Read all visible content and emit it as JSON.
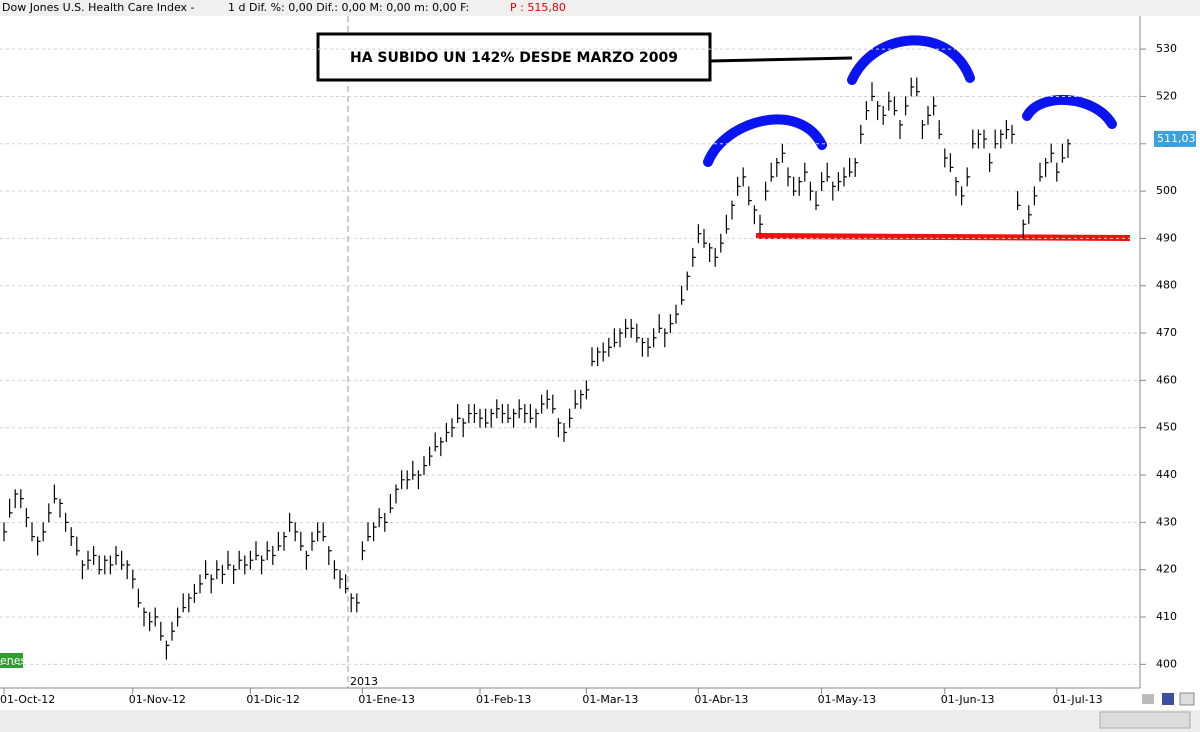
{
  "chart_data": {
    "type": "ohlc",
    "header": {
      "name": "Dow Jones U.S. Health Care Index -",
      "stats": "1 d Dif. %: 0,00 Dif.: 0,00 M: 0,00 m: 0,00 F:",
      "price": "P : 515,80"
    },
    "annotation": "HA SUBIDO UN  142% DESDE MARZO 2009",
    "year_label": "2013",
    "left_tag": "enes",
    "last_price": {
      "value": 511.03,
      "label": "511,03"
    },
    "color": "#000000",
    "ylim": [
      395,
      537
    ],
    "yticks": [
      400,
      410,
      420,
      430,
      440,
      450,
      460,
      470,
      480,
      490,
      500,
      510,
      520,
      530
    ],
    "grid": true,
    "categories": [
      "01-Oct-12",
      null,
      null,
      null,
      null,
      null,
      null,
      null,
      null,
      null,
      null,
      null,
      null,
      null,
      null,
      null,
      null,
      null,
      null,
      null,
      null,
      null,
      null,
      "01-Nov-12",
      null,
      null,
      null,
      null,
      null,
      null,
      null,
      null,
      null,
      null,
      null,
      null,
      null,
      null,
      null,
      null,
      null,
      null,
      null,
      null,
      "01-Dic-12",
      null,
      null,
      null,
      null,
      null,
      null,
      null,
      null,
      null,
      null,
      null,
      null,
      null,
      null,
      null,
      null,
      null,
      null,
      null,
      "01-Ene-13",
      null,
      null,
      null,
      null,
      null,
      null,
      null,
      null,
      null,
      null,
      null,
      null,
      null,
      null,
      null,
      null,
      null,
      null,
      null,
      null,
      "01-Feb-13",
      null,
      null,
      null,
      null,
      null,
      null,
      null,
      null,
      null,
      null,
      null,
      null,
      null,
      null,
      null,
      null,
      null,
      null,
      "01-Mar-13",
      null,
      null,
      null,
      null,
      null,
      null,
      null,
      null,
      null,
      null,
      null,
      null,
      null,
      null,
      null,
      null,
      null,
      null,
      null,
      "01-Abr-13",
      null,
      null,
      null,
      null,
      null,
      null,
      null,
      null,
      null,
      null,
      null,
      null,
      null,
      null,
      null,
      null,
      null,
      null,
      null,
      null,
      null,
      "01-May-13",
      null,
      null,
      null,
      null,
      null,
      null,
      null,
      null,
      null,
      null,
      null,
      null,
      null,
      null,
      null,
      null,
      null,
      null,
      null,
      null,
      null,
      "01-Jun-13",
      null,
      null,
      null,
      null,
      null,
      null,
      null,
      null,
      null,
      null,
      null,
      null,
      null,
      null,
      null,
      null,
      null,
      null,
      null,
      "01-Jul-13",
      null,
      null
    ],
    "high": [
      430,
      435,
      437,
      437,
      433,
      430,
      427,
      430,
      434,
      438,
      435,
      432,
      429,
      427,
      422,
      424,
      425,
      423,
      423,
      423,
      425,
      424,
      422,
      420,
      416,
      412,
      411,
      412,
      409,
      405,
      409,
      412,
      415,
      415,
      417,
      419,
      422,
      419,
      422,
      421,
      424,
      421,
      424,
      423,
      424,
      426,
      423,
      426,
      425,
      428,
      428,
      432,
      430,
      428,
      424,
      428,
      430,
      430,
      425,
      422,
      420,
      419,
      415,
      415,
      426,
      430,
      430,
      433,
      432,
      436,
      438,
      441,
      441,
      443,
      441,
      444,
      446,
      449,
      448,
      451,
      452,
      455,
      452,
      455,
      455,
      454,
      454,
      454,
      456,
      455,
      455,
      454,
      456,
      455,
      455,
      454,
      457,
      458,
      457,
      452,
      451,
      454,
      458,
      458,
      460,
      467,
      467,
      468,
      469,
      471,
      471,
      473,
      473,
      472,
      469,
      469,
      471,
      474,
      471,
      474,
      476,
      480,
      483,
      488,
      493,
      492,
      489,
      488,
      491,
      495,
      498,
      503,
      505,
      501,
      497,
      495,
      502,
      506,
      507,
      510,
      505,
      503,
      503,
      506,
      502,
      500,
      504,
      506,
      502,
      504,
      505,
      507,
      507,
      514,
      519,
      523,
      519,
      518,
      521,
      520,
      515,
      520,
      524,
      524,
      515,
      518,
      520,
      515,
      509,
      508,
      503,
      501,
      505,
      513,
      513,
      513,
      508,
      513,
      513,
      515,
      514,
      500,
      494,
      497,
      501,
      506,
      507,
      510,
      506,
      510,
      511
    ],
    "low": [
      426,
      431,
      433,
      433,
      429,
      426,
      423,
      426,
      430,
      434,
      431,
      428,
      425,
      423,
      418,
      420,
      421,
      419,
      419,
      419,
      421,
      420,
      418,
      416,
      412,
      408,
      407,
      408,
      405,
      401,
      405,
      408,
      411,
      411,
      413,
      415,
      418,
      415,
      418,
      417,
      420,
      417,
      420,
      419,
      420,
      422,
      419,
      422,
      421,
      424,
      424,
      428,
      426,
      424,
      420,
      424,
      426,
      426,
      421,
      418,
      416,
      415,
      411,
      411,
      422,
      426,
      426,
      429,
      428,
      432,
      434,
      437,
      437,
      439,
      437,
      440,
      442,
      445,
      444,
      447,
      448,
      451,
      448,
      451,
      451,
      450,
      450,
      450,
      452,
      451,
      451,
      450,
      452,
      451,
      451,
      450,
      453,
      454,
      453,
      448,
      447,
      450,
      454,
      454,
      456,
      463,
      463,
      464,
      465,
      467,
      467,
      469,
      469,
      468,
      465,
      465,
      467,
      470,
      467,
      470,
      472,
      476,
      479,
      484,
      489,
      488,
      485,
      484,
      487,
      491,
      494,
      499,
      501,
      497,
      493,
      491,
      498,
      502,
      503,
      506,
      501,
      499,
      499,
      502,
      498,
      496,
      500,
      502,
      498,
      500,
      501,
      503,
      503,
      510,
      515,
      519,
      515,
      514,
      517,
      516,
      511,
      516,
      520,
      520,
      511,
      514,
      516,
      511,
      505,
      504,
      499,
      497,
      501,
      509,
      509,
      509,
      504,
      509,
      509,
      511,
      510,
      496,
      490,
      493,
      497,
      502,
      503,
      506,
      502,
      506,
      507
    ],
    "close": [
      428,
      432,
      436,
      435,
      431,
      427,
      426,
      428,
      432,
      435,
      434,
      430,
      427,
      424,
      421,
      422,
      423,
      420,
      422,
      421,
      423,
      421,
      421,
      418,
      413,
      411,
      409,
      410,
      406,
      404,
      407,
      410,
      412,
      414,
      415,
      417,
      419,
      418,
      420,
      419,
      421,
      420,
      422,
      421,
      422,
      423,
      422,
      424,
      423,
      425,
      427,
      430,
      428,
      425,
      423,
      426,
      428,
      427,
      424,
      420,
      418,
      416,
      414,
      413,
      424,
      427,
      429,
      431,
      430,
      433,
      437,
      439,
      439,
      440,
      440,
      442,
      444,
      446,
      447,
      449,
      450,
      452,
      451,
      453,
      453,
      452,
      451,
      453,
      454,
      453,
      452,
      453,
      454,
      453,
      452,
      453,
      455,
      456,
      454,
      451,
      449,
      452,
      455,
      457,
      458,
      464,
      466,
      466,
      467,
      468,
      470,
      471,
      471,
      469,
      468,
      467,
      469,
      471,
      470,
      472,
      474,
      477,
      482,
      486,
      491,
      489,
      488,
      486,
      489,
      492,
      497,
      501,
      503,
      498,
      496,
      493,
      500,
      503,
      506,
      508,
      503,
      500,
      502,
      504,
      500,
      497,
      502,
      503,
      501,
      502,
      503,
      504,
      506,
      512,
      517,
      520,
      518,
      516,
      519,
      517,
      514,
      518,
      522,
      521,
      514,
      516,
      518,
      512,
      507,
      505,
      502,
      499,
      503,
      510,
      512,
      511,
      506,
      510,
      512,
      513,
      512,
      497,
      493,
      495,
      499,
      503,
      506,
      508,
      504,
      507,
      510
    ]
  }
}
